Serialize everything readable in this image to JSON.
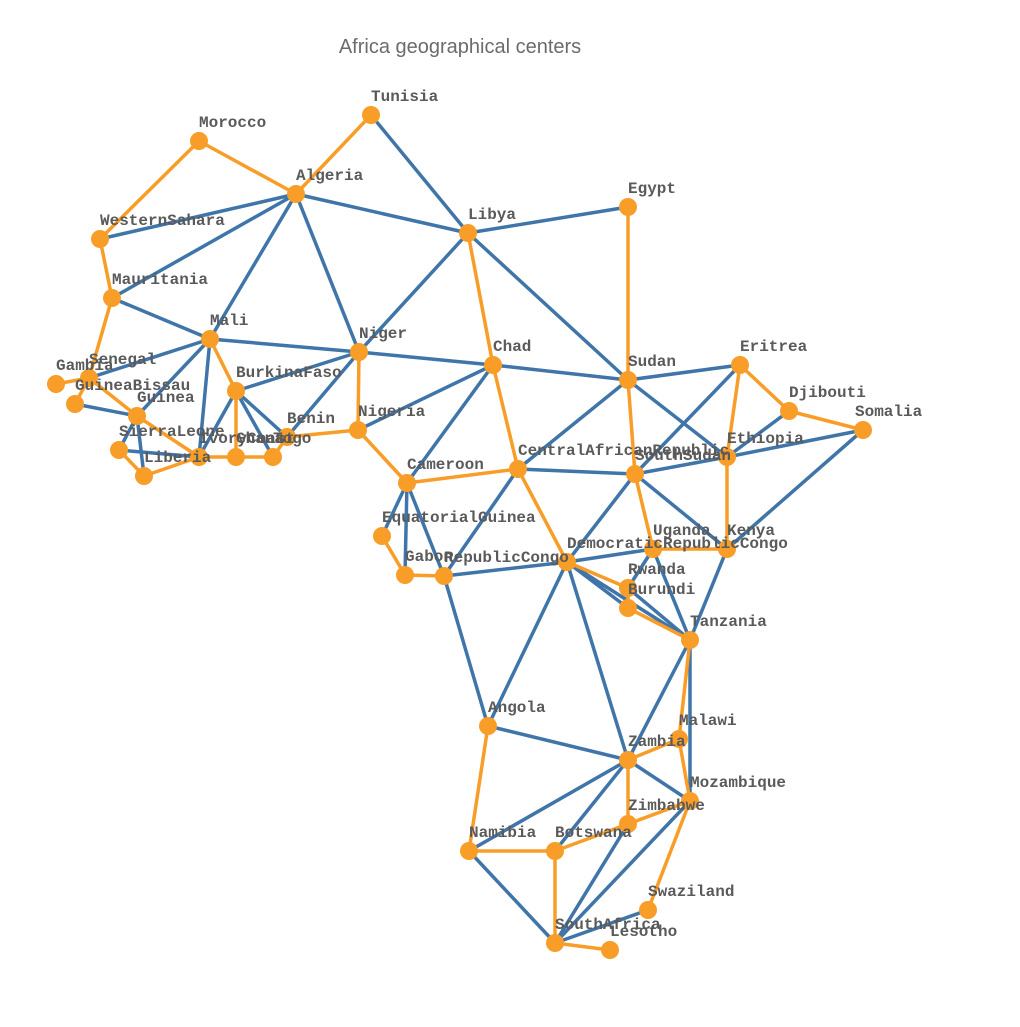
{
  "title": "Africa geographical centers",
  "colors": {
    "node": "#f89d27",
    "edge_primary": "#3f75a8",
    "edge_highlight": "#f89d27",
    "label": "#5a5a5a"
  },
  "chart_data": {
    "type": "network",
    "title": "Africa geographical centers",
    "nodes": [
      {
        "id": "Tunisia",
        "label": "Tunisia"
      },
      {
        "id": "Morocco",
        "label": "Morocco"
      },
      {
        "id": "Algeria",
        "label": "Algeria"
      },
      {
        "id": "Egypt",
        "label": "Egypt"
      },
      {
        "id": "Libya",
        "label": "Libya"
      },
      {
        "id": "WesternSahara",
        "label": "WesternSahara"
      },
      {
        "id": "Mauritania",
        "label": "Mauritania"
      },
      {
        "id": "Mali",
        "label": "Mali"
      },
      {
        "id": "Niger",
        "label": "Niger"
      },
      {
        "id": "Chad",
        "label": "Chad"
      },
      {
        "id": "Sudan",
        "label": "Sudan"
      },
      {
        "id": "Eritrea",
        "label": "Eritrea"
      },
      {
        "id": "Djibouti",
        "label": "Djibouti"
      },
      {
        "id": "Somalia",
        "label": "Somalia"
      },
      {
        "id": "Senegal",
        "label": "Senegal"
      },
      {
        "id": "Gambia",
        "label": "Gambia"
      },
      {
        "id": "GuineaBissau",
        "label": "GuineaBissau"
      },
      {
        "id": "Guinea",
        "label": "Guinea"
      },
      {
        "id": "BurkinaFaso",
        "label": "BurkinaFaso"
      },
      {
        "id": "SierraLeone",
        "label": "SierraLeone"
      },
      {
        "id": "Liberia",
        "label": "Liberia"
      },
      {
        "id": "IvoryCoast",
        "label": "IvoryCoast"
      },
      {
        "id": "Ghana",
        "label": "Ghana"
      },
      {
        "id": "Togo",
        "label": "Togo"
      },
      {
        "id": "Benin",
        "label": "Benin"
      },
      {
        "id": "Nigeria",
        "label": "Nigeria"
      },
      {
        "id": "Cameroon",
        "label": "Cameroon"
      },
      {
        "id": "CentralAfricanRepublic",
        "label": "CentralAfricanRepublic"
      },
      {
        "id": "SouthSudan",
        "label": "SouthSudan"
      },
      {
        "id": "Ethiopia",
        "label": "Ethiopia"
      },
      {
        "id": "EquatorialGuinea",
        "label": "EquatorialGuinea"
      },
      {
        "id": "Gabon",
        "label": "Gabon"
      },
      {
        "id": "RepublicCongo",
        "label": "RepublicCongo"
      },
      {
        "id": "DemocraticRepublicCongo",
        "label": "DemocraticRepublicCongo"
      },
      {
        "id": "Uganda",
        "label": "Uganda"
      },
      {
        "id": "Kenya",
        "label": "Kenya"
      },
      {
        "id": "Rwanda",
        "label": "Rwanda"
      },
      {
        "id": "Burundi",
        "label": "Burundi"
      },
      {
        "id": "Tanzania",
        "label": "Tanzania"
      },
      {
        "id": "Angola",
        "label": "Angola"
      },
      {
        "id": "Malawi",
        "label": "Malawi"
      },
      {
        "id": "Zambia",
        "label": "Zambia"
      },
      {
        "id": "Mozambique",
        "label": "Mozambique"
      },
      {
        "id": "Zimbabwe",
        "label": "Zimbabwe"
      },
      {
        "id": "Namibia",
        "label": "Namibia"
      },
      {
        "id": "Botswana",
        "label": "Botswana"
      },
      {
        "id": "Swaziland",
        "label": "Swaziland"
      },
      {
        "id": "SouthAfrica",
        "label": "SouthAfrica"
      },
      {
        "id": "Lesotho",
        "label": "Lesotho"
      }
    ],
    "edges": [
      {
        "source": "Tunisia",
        "target": "Algeria",
        "highlight": true
      },
      {
        "source": "Tunisia",
        "target": "Libya",
        "highlight": false
      },
      {
        "source": "Morocco",
        "target": "Algeria",
        "highlight": true
      },
      {
        "source": "Morocco",
        "target": "WesternSahara",
        "highlight": true
      },
      {
        "source": "Algeria",
        "target": "Libya",
        "highlight": false
      },
      {
        "source": "Algeria",
        "target": "WesternSahara",
        "highlight": false
      },
      {
        "source": "Algeria",
        "target": "Mauritania",
        "highlight": false
      },
      {
        "source": "Algeria",
        "target": "Mali",
        "highlight": false
      },
      {
        "source": "Algeria",
        "target": "Niger",
        "highlight": false
      },
      {
        "source": "Egypt",
        "target": "Libya",
        "highlight": false
      },
      {
        "source": "Egypt",
        "target": "Sudan",
        "highlight": true
      },
      {
        "source": "Libya",
        "target": "Niger",
        "highlight": false
      },
      {
        "source": "Libya",
        "target": "Chad",
        "highlight": true
      },
      {
        "source": "Libya",
        "target": "Sudan",
        "highlight": false
      },
      {
        "source": "WesternSahara",
        "target": "Mauritania",
        "highlight": true
      },
      {
        "source": "Mauritania",
        "target": "Mali",
        "highlight": false
      },
      {
        "source": "Mauritania",
        "target": "Senegal",
        "highlight": true
      },
      {
        "source": "Mali",
        "target": "Senegal",
        "highlight": false
      },
      {
        "source": "Mali",
        "target": "Guinea",
        "highlight": false
      },
      {
        "source": "Mali",
        "target": "IvoryCoast",
        "highlight": false
      },
      {
        "source": "Mali",
        "target": "BurkinaFaso",
        "highlight": true
      },
      {
        "source": "Mali",
        "target": "Niger",
        "highlight": false
      },
      {
        "source": "Niger",
        "target": "Chad",
        "highlight": false
      },
      {
        "source": "Niger",
        "target": "BurkinaFaso",
        "highlight": false
      },
      {
        "source": "Niger",
        "target": "Benin",
        "highlight": false
      },
      {
        "source": "Niger",
        "target": "Nigeria",
        "highlight": true
      },
      {
        "source": "Chad",
        "target": "Sudan",
        "highlight": false
      },
      {
        "source": "Chad",
        "target": "Nigeria",
        "highlight": false
      },
      {
        "source": "Chad",
        "target": "Cameroon",
        "highlight": false
      },
      {
        "source": "Chad",
        "target": "CentralAfricanRepublic",
        "highlight": true
      },
      {
        "source": "Sudan",
        "target": "Eritrea",
        "highlight": false
      },
      {
        "source": "Sudan",
        "target": "Ethiopia",
        "highlight": false
      },
      {
        "source": "Sudan",
        "target": "SouthSudan",
        "highlight": true
      },
      {
        "source": "Sudan",
        "target": "CentralAfricanRepublic",
        "highlight": false
      },
      {
        "source": "Eritrea",
        "target": "Djibouti",
        "highlight": true
      },
      {
        "source": "Eritrea",
        "target": "Ethiopia",
        "highlight": true
      },
      {
        "source": "Eritrea",
        "target": "SouthSudan",
        "highlight": false
      },
      {
        "source": "Djibouti",
        "target": "Somalia",
        "highlight": true
      },
      {
        "source": "Djibouti",
        "target": "Ethiopia",
        "highlight": false
      },
      {
        "source": "Somalia",
        "target": "Ethiopia",
        "highlight": false
      },
      {
        "source": "Somalia",
        "target": "Kenya",
        "highlight": false
      },
      {
        "source": "Gambia",
        "target": "Senegal",
        "highlight": true
      },
      {
        "source": "Senegal",
        "target": "GuineaBissau",
        "highlight": true
      },
      {
        "source": "Senegal",
        "target": "Guinea",
        "highlight": true
      },
      {
        "source": "GuineaBissau",
        "target": "Guinea",
        "highlight": false
      },
      {
        "source": "Guinea",
        "target": "SierraLeone",
        "highlight": false
      },
      {
        "source": "Guinea",
        "target": "Liberia",
        "highlight": false
      },
      {
        "source": "Guinea",
        "target": "IvoryCoast",
        "highlight": true
      },
      {
        "source": "SierraLeone",
        "target": "Liberia",
        "highlight": true
      },
      {
        "source": "SierraLeone",
        "target": "IvoryCoast",
        "highlight": false
      },
      {
        "source": "Liberia",
        "target": "IvoryCoast",
        "highlight": true
      },
      {
        "source": "IvoryCoast",
        "target": "Ghana",
        "highlight": true
      },
      {
        "source": "IvoryCoast",
        "target": "BurkinaFaso",
        "highlight": false
      },
      {
        "source": "BurkinaFaso",
        "target": "Ghana",
        "highlight": true
      },
      {
        "source": "BurkinaFaso",
        "target": "Togo",
        "highlight": false
      },
      {
        "source": "BurkinaFaso",
        "target": "Benin",
        "highlight": false
      },
      {
        "source": "Ghana",
        "target": "Togo",
        "highlight": true
      },
      {
        "source": "Togo",
        "target": "Benin",
        "highlight": true
      },
      {
        "source": "Benin",
        "target": "Nigeria",
        "highlight": true
      },
      {
        "source": "Nigeria",
        "target": "Cameroon",
        "highlight": true
      },
      {
        "source": "Cameroon",
        "target": "CentralAfricanRepublic",
        "highlight": true
      },
      {
        "source": "Cameroon",
        "target": "EquatorialGuinea",
        "highlight": false
      },
      {
        "source": "Cameroon",
        "target": "Gabon",
        "highlight": false
      },
      {
        "source": "Cameroon",
        "target": "RepublicCongo",
        "highlight": false
      },
      {
        "source": "CentralAfricanRepublic",
        "target": "SouthSudan",
        "highlight": false
      },
      {
        "source": "CentralAfricanRepublic",
        "target": "RepublicCongo",
        "highlight": false
      },
      {
        "source": "CentralAfricanRepublic",
        "target": "DemocraticRepublicCongo",
        "highlight": true
      },
      {
        "source": "SouthSudan",
        "target": "Ethiopia",
        "highlight": false
      },
      {
        "source": "SouthSudan",
        "target": "DemocraticRepublicCongo",
        "highlight": false
      },
      {
        "source": "SouthSudan",
        "target": "Uganda",
        "highlight": true
      },
      {
        "source": "SouthSudan",
        "target": "Kenya",
        "highlight": false
      },
      {
        "source": "Ethiopia",
        "target": "Kenya",
        "highlight": true
      },
      {
        "source": "EquatorialGuinea",
        "target": "Gabon",
        "highlight": true
      },
      {
        "source": "Gabon",
        "target": "RepublicCongo",
        "highlight": true
      },
      {
        "source": "RepublicCongo",
        "target": "DemocraticRepublicCongo",
        "highlight": false
      },
      {
        "source": "RepublicCongo",
        "target": "Angola",
        "highlight": false
      },
      {
        "source": "DemocraticRepublicCongo",
        "target": "Uganda",
        "highlight": false
      },
      {
        "source": "DemocraticRepublicCongo",
        "target": "Rwanda",
        "highlight": true
      },
      {
        "source": "DemocraticRepublicCongo",
        "target": "Burundi",
        "highlight": false
      },
      {
        "source": "DemocraticRepublicCongo",
        "target": "Tanzania",
        "highlight": false
      },
      {
        "source": "DemocraticRepublicCongo",
        "target": "Zambia",
        "highlight": false
      },
      {
        "source": "DemocraticRepublicCongo",
        "target": "Angola",
        "highlight": false
      },
      {
        "source": "Uganda",
        "target": "Kenya",
        "highlight": true
      },
      {
        "source": "Uganda",
        "target": "Rwanda",
        "highlight": false
      },
      {
        "source": "Uganda",
        "target": "Tanzania",
        "highlight": false
      },
      {
        "source": "Kenya",
        "target": "Tanzania",
        "highlight": false
      },
      {
        "source": "Rwanda",
        "target": "Burundi",
        "highlight": true
      },
      {
        "source": "Rwanda",
        "target": "Tanzania",
        "highlight": false
      },
      {
        "source": "Burundi",
        "target": "Tanzania",
        "highlight": true
      },
      {
        "source": "Tanzania",
        "target": "Zambia",
        "highlight": false
      },
      {
        "source": "Tanzania",
        "target": "Malawi",
        "highlight": true
      },
      {
        "source": "Tanzania",
        "target": "Mozambique",
        "highlight": false
      },
      {
        "source": "Angola",
        "target": "Zambia",
        "highlight": false
      },
      {
        "source": "Angola",
        "target": "Namibia",
        "highlight": true
      },
      {
        "source": "Malawi",
        "target": "Zambia",
        "highlight": true
      },
      {
        "source": "Malawi",
        "target": "Mozambique",
        "highlight": true
      },
      {
        "source": "Zambia",
        "target": "Mozambique",
        "highlight": false
      },
      {
        "source": "Zambia",
        "target": "Zimbabwe",
        "highlight": true
      },
      {
        "source": "Zambia",
        "target": "Namibia",
        "highlight": false
      },
      {
        "source": "Zambia",
        "target": "Botswana",
        "highlight": false
      },
      {
        "source": "Mozambique",
        "target": "Zimbabwe",
        "highlight": true
      },
      {
        "source": "Mozambique",
        "target": "Swaziland",
        "highlight": true
      },
      {
        "source": "Mozambique",
        "target": "SouthAfrica",
        "highlight": false
      },
      {
        "source": "Zimbabwe",
        "target": "Botswana",
        "highlight": true
      },
      {
        "source": "Zimbabwe",
        "target": "SouthAfrica",
        "highlight": false
      },
      {
        "source": "Namibia",
        "target": "Botswana",
        "highlight": true
      },
      {
        "source": "Namibia",
        "target": "SouthAfrica",
        "highlight": false
      },
      {
        "source": "Botswana",
        "target": "SouthAfrica",
        "highlight": true
      },
      {
        "source": "Swaziland",
        "target": "SouthAfrica",
        "highlight": false
      },
      {
        "source": "SouthAfrica",
        "target": "Lesotho",
        "highlight": true
      }
    ]
  }
}
